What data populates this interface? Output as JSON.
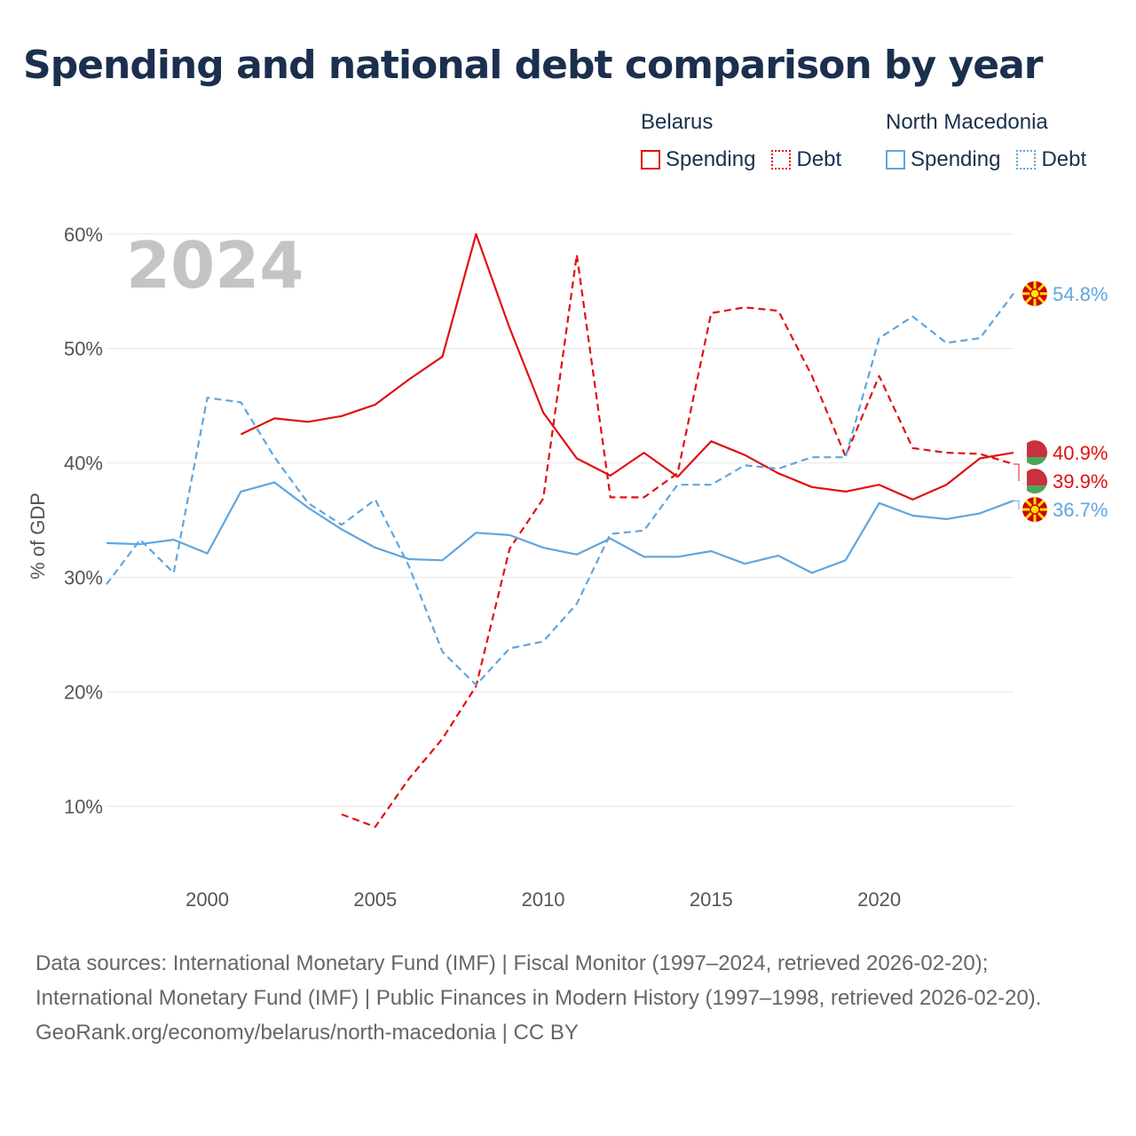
{
  "title": "Spending and national debt comparison by year",
  "legend": {
    "groups": [
      {
        "country": "Belarus",
        "spending": "Spending",
        "debt": "Debt"
      },
      {
        "country": "North Macedonia",
        "spending": "Spending",
        "debt": "Debt"
      }
    ]
  },
  "colors": {
    "belarus": "#e01010",
    "north_macedonia": "#5ea6e0",
    "grid": "#e6e6e6"
  },
  "footer": {
    "sources": "Data sources: International Monetary Fund (IMF) | Fiscal Monitor (1997–2024, retrieved 2026-02-20); International Monetary Fund (IMF) | Public Finances in Modern History (1997–1998, retrieved 2026-02-20).",
    "credit": "GeoRank.org/economy/belarus/north-macedonia | CC BY"
  },
  "chart_data": {
    "type": "line",
    "year_label": "2024",
    "ylabel": "% of GDP",
    "xlim": [
      1997,
      2024
    ],
    "ylim": [
      5,
      62
    ],
    "x_ticks": [
      2000,
      2005,
      2010,
      2015,
      2020
    ],
    "y_ticks": [
      10,
      20,
      30,
      40,
      50,
      60
    ],
    "y_tick_labels": [
      "10%",
      "20%",
      "30%",
      "40%",
      "50%",
      "60%"
    ],
    "x": [
      1997,
      1998,
      1999,
      2000,
      2001,
      2002,
      2003,
      2004,
      2005,
      2006,
      2007,
      2008,
      2009,
      2010,
      2011,
      2012,
      2013,
      2014,
      2015,
      2016,
      2017,
      2018,
      2019,
      2020,
      2021,
      2022,
      2023,
      2024
    ],
    "series": [
      {
        "name": "Belarus Spending",
        "country": "Belarus",
        "kind": "spending",
        "dashed": false,
        "values": [
          null,
          null,
          null,
          null,
          42.5,
          43.9,
          43.6,
          44.1,
          45.1,
          47.3,
          49.3,
          60.0,
          51.8,
          44.4,
          40.4,
          38.9,
          40.9,
          38.8,
          41.9,
          40.7,
          39.1,
          37.9,
          37.5,
          38.1,
          36.8,
          38.1,
          40.4,
          40.9
        ]
      },
      {
        "name": "Belarus Debt",
        "country": "Belarus",
        "kind": "debt",
        "dashed": true,
        "values": [
          null,
          null,
          null,
          null,
          null,
          null,
          null,
          9.3,
          8.2,
          12.4,
          15.9,
          20.5,
          32.5,
          36.9,
          58.2,
          37.0,
          37.0,
          39.1,
          53.1,
          53.6,
          53.3,
          47.6,
          40.6,
          47.6,
          41.3,
          40.9,
          40.8,
          39.9
        ]
      },
      {
        "name": "North Macedonia Spending",
        "country": "North Macedonia",
        "kind": "spending",
        "dashed": false,
        "values": [
          33.0,
          32.9,
          33.3,
          32.1,
          37.5,
          38.3,
          36.1,
          34.2,
          32.6,
          31.6,
          31.5,
          33.9,
          33.7,
          32.6,
          32.0,
          33.4,
          31.8,
          31.8,
          32.3,
          31.2,
          31.9,
          30.4,
          31.5,
          36.5,
          35.4,
          35.1,
          35.6,
          36.7
        ]
      },
      {
        "name": "North Macedonia Debt",
        "country": "North Macedonia",
        "kind": "debt",
        "dashed": true,
        "values": [
          29.4,
          33.3,
          30.4,
          45.7,
          45.3,
          40.5,
          36.5,
          34.6,
          36.8,
          31.0,
          23.5,
          20.6,
          23.8,
          24.4,
          27.7,
          33.8,
          34.1,
          38.1,
          38.1,
          39.8,
          39.5,
          40.5,
          40.5,
          50.9,
          52.8,
          50.5,
          50.9,
          54.8
        ]
      }
    ],
    "end_labels": [
      {
        "country": "North Macedonia",
        "text": "54.8%",
        "value": 54.8
      },
      {
        "country": "Belarus",
        "text": "40.9%",
        "value": 40.9
      },
      {
        "country": "Belarus",
        "text": "39.9%",
        "value": 39.9
      },
      {
        "country": "North Macedonia",
        "text": "36.7%",
        "value": 36.7
      }
    ]
  }
}
